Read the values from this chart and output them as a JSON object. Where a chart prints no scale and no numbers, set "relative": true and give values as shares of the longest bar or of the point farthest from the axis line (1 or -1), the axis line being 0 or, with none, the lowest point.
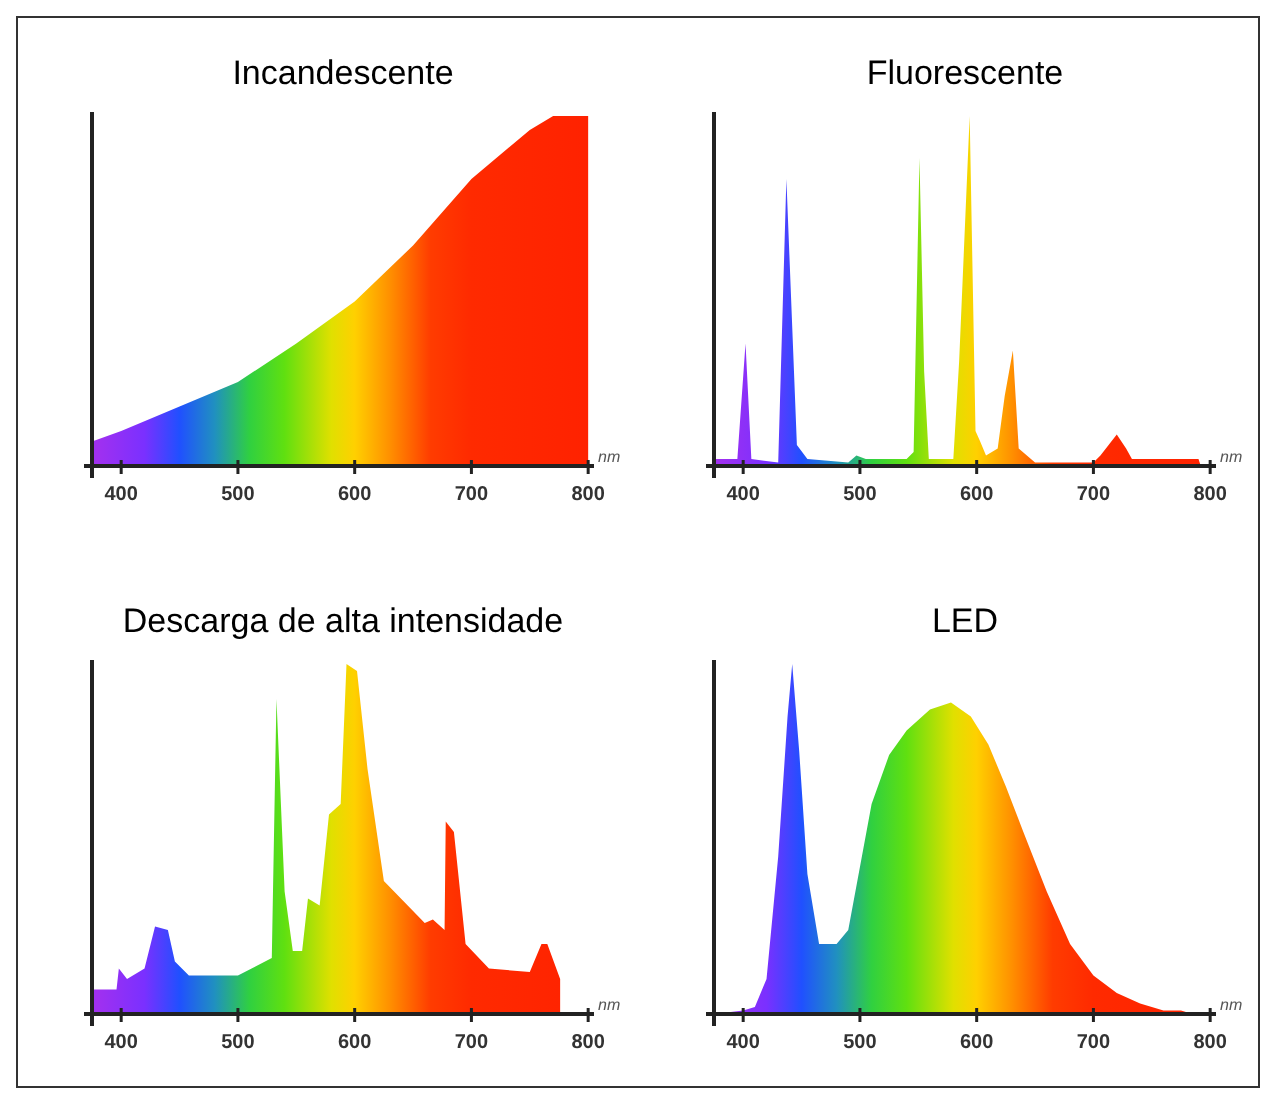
{
  "chart_data": [
    {
      "type": "area",
      "title": "Incandescente",
      "xlabel": "nm",
      "relative": true,
      "xlim": [
        375,
        805
      ],
      "xticks": [
        400,
        500,
        600,
        700,
        800
      ],
      "x": [
        375,
        400,
        450,
        500,
        550,
        600,
        650,
        700,
        750,
        770,
        800,
        800
      ],
      "values": [
        0.07,
        0.1,
        0.17,
        0.24,
        0.35,
        0.47,
        0.63,
        0.82,
        0.96,
        1,
        1,
        0
      ]
    },
    {
      "type": "area",
      "title": "Fluorescente",
      "xlabel": "nm",
      "relative": true,
      "xlim": [
        375,
        805
      ],
      "xticks": [
        400,
        500,
        600,
        700,
        800
      ],
      "x": [
        375,
        395,
        402,
        407,
        430,
        437,
        446,
        455,
        490,
        497,
        505,
        540,
        546,
        551,
        555,
        559,
        580,
        585,
        594,
        599,
        603,
        608,
        618,
        624,
        631,
        636,
        650,
        700,
        706,
        720,
        728,
        733,
        790,
        792
      ],
      "values": [
        0.02,
        0.02,
        0.35,
        0.02,
        0.01,
        0.82,
        0.06,
        0.02,
        0.01,
        0.03,
        0.02,
        0.02,
        0.04,
        0.88,
        0.27,
        0.02,
        0.02,
        0.3,
        1,
        0.1,
        0.07,
        0.03,
        0.05,
        0.2,
        0.33,
        0.05,
        0.01,
        0.01,
        0.03,
        0.09,
        0.05,
        0.02,
        0.02,
        0
      ]
    },
    {
      "type": "area",
      "title": "Descarga de alta intensidade",
      "xlabel": "nm",
      "relative": true,
      "xlim": [
        375,
        805
      ],
      "xticks": [
        400,
        500,
        600,
        700,
        800
      ],
      "x": [
        375,
        396,
        398,
        405,
        420,
        429,
        440,
        446,
        458,
        500,
        529,
        533,
        540,
        547,
        555,
        560,
        570,
        578,
        588,
        593,
        602,
        611,
        625,
        660,
        667,
        677,
        678,
        685,
        695,
        715,
        750,
        760,
        765,
        776,
        776
      ],
      "values": [
        0.07,
        0.07,
        0.13,
        0.1,
        0.13,
        0.25,
        0.24,
        0.15,
        0.11,
        0.11,
        0.16,
        0.9,
        0.35,
        0.18,
        0.18,
        0.33,
        0.31,
        0.57,
        0.6,
        1,
        0.98,
        0.7,
        0.38,
        0.26,
        0.27,
        0.24,
        0.55,
        0.52,
        0.2,
        0.13,
        0.12,
        0.2,
        0.2,
        0.1,
        0
      ]
    },
    {
      "type": "area",
      "title": "LED",
      "xlabel": "nm",
      "relative": true,
      "xlim": [
        375,
        805
      ],
      "xticks": [
        400,
        500,
        600,
        700,
        800
      ],
      "x": [
        375,
        400,
        410,
        420,
        430,
        438,
        442,
        448,
        455,
        465,
        480,
        490,
        500,
        510,
        525,
        540,
        560,
        578,
        595,
        610,
        625,
        640,
        660,
        680,
        700,
        720,
        740,
        760,
        775,
        785
      ],
      "values": [
        0,
        0.01,
        0.02,
        0.1,
        0.45,
        0.85,
        1,
        0.75,
        0.4,
        0.2,
        0.2,
        0.24,
        0.42,
        0.6,
        0.74,
        0.81,
        0.87,
        0.89,
        0.85,
        0.77,
        0.65,
        0.52,
        0.35,
        0.2,
        0.11,
        0.06,
        0.03,
        0.01,
        0.01,
        0
      ]
    }
  ]
}
